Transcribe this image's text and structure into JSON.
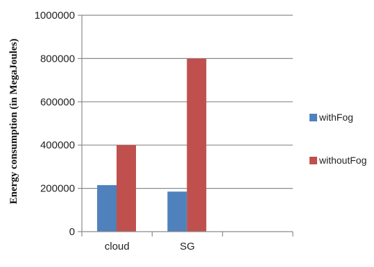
{
  "chart_data": {
    "type": "bar",
    "title": "",
    "xlabel": "",
    "ylabel": "Energy consumption (in MegaJoules)",
    "categories": [
      "cloud",
      "SG",
      ""
    ],
    "series": [
      {
        "name": "withFog",
        "values": [
          215000,
          185000,
          null
        ],
        "color": "#4f81bd"
      },
      {
        "name": "withoutFog",
        "values": [
          400000,
          800000,
          null
        ],
        "color": "#c0504d"
      }
    ],
    "ylim": [
      0,
      1000000
    ],
    "yticks": [
      "0",
      "200000",
      "400000",
      "600000",
      "800000",
      "1000000"
    ],
    "grid": true,
    "legend_position": "right"
  }
}
